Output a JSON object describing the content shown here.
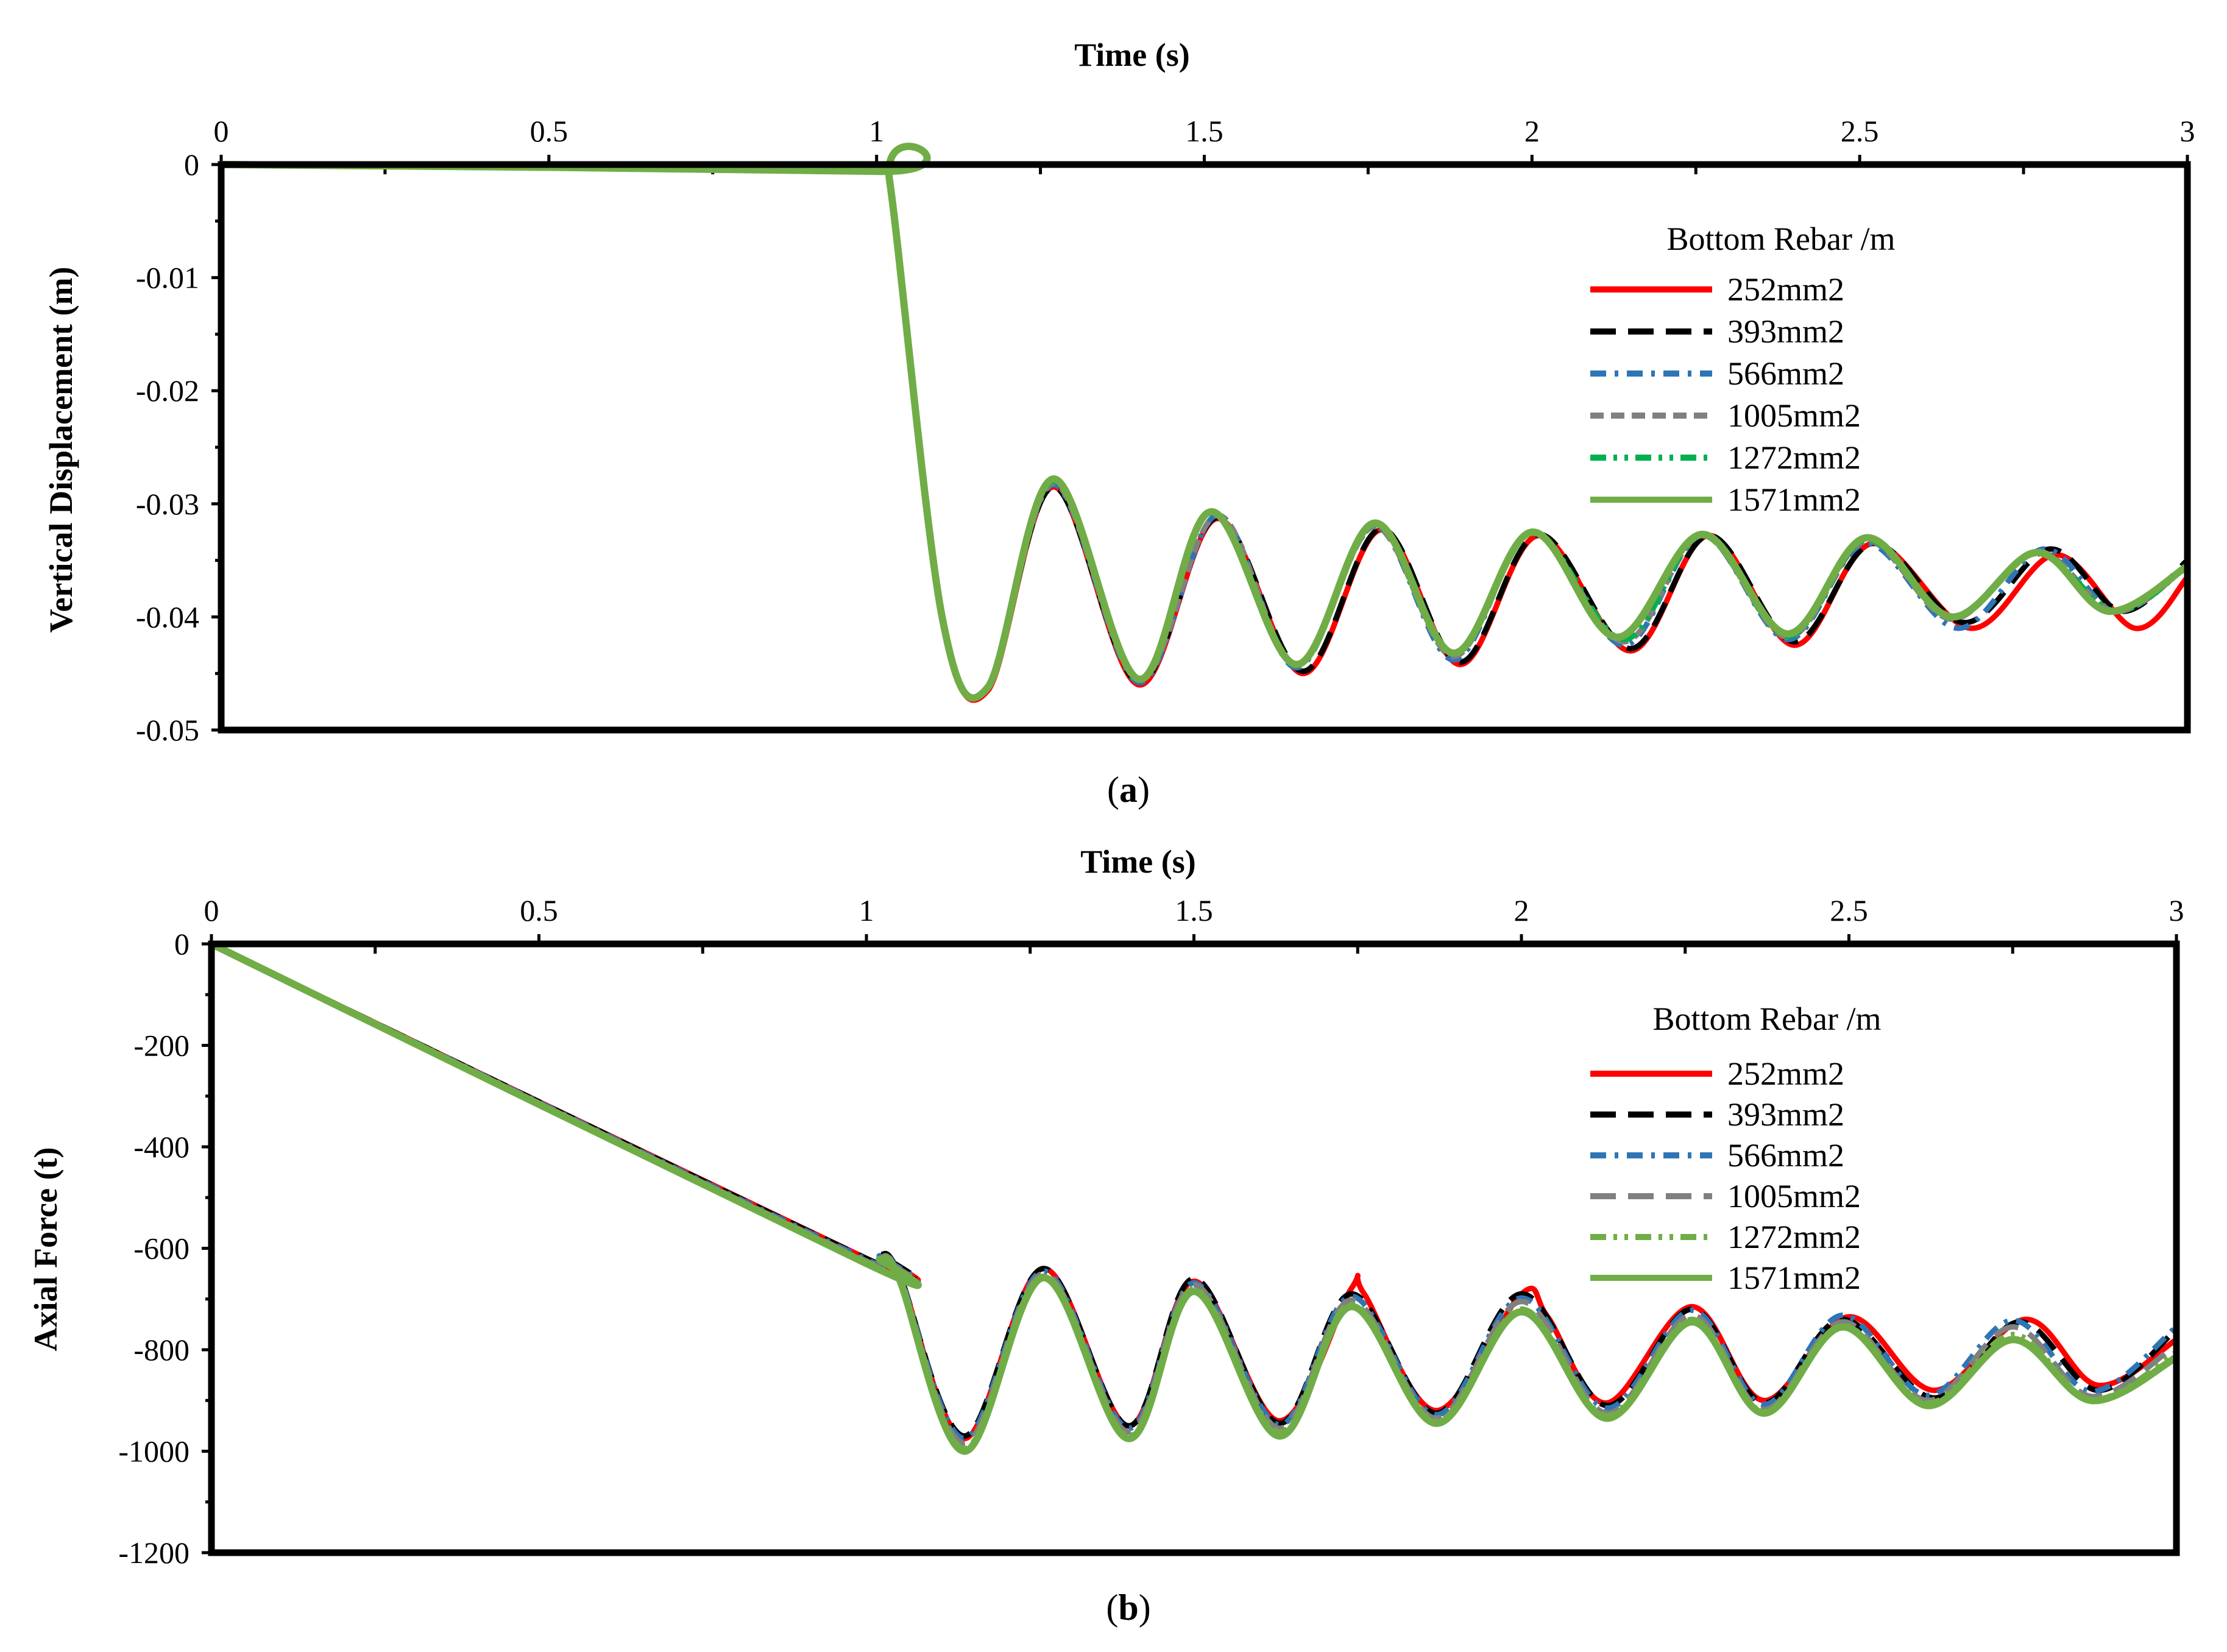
{
  "colors": {
    "252mm2": "#ff0000",
    "393mm2": "#000000",
    "566mm2": "#2e75b6",
    "1005mm2": "#808080",
    "1272mm2_a": "#00b050",
    "1272mm2_b": "#70ad47",
    "1571mm2": "#70ad47"
  },
  "chart_data": [
    {
      "type": "line",
      "panel_label_parts": [
        "(",
        "a",
        ")"
      ],
      "xlabel": "Time (s)",
      "ylabel": "Vertical Displacement (m)",
      "xlim": [
        0,
        3
      ],
      "ylim": [
        -0.05,
        0
      ],
      "x_ticks": [
        "0",
        "0.5",
        "1",
        "1.5",
        "2",
        "2.5",
        "3"
      ],
      "y_ticks": [
        "0",
        "-0.01",
        "-0.02",
        "-0.03",
        "-0.04",
        "-0.05"
      ],
      "x_axis_position": "top",
      "grid": false,
      "legend_title": "Bottom Rebar /m",
      "legend_position": "right",
      "series": [
        {
          "name": "252mm2",
          "color_key": "252mm2",
          "dash": "solid",
          "x": [
            0,
            1.0,
            1.02,
            1.1,
            1.17,
            1.27,
            1.4,
            1.52,
            1.65,
            1.77,
            1.89,
            2.01,
            2.15,
            2.27,
            2.4,
            2.52,
            2.67,
            2.8,
            2.92,
            3.0
          ],
          "y": [
            0,
            -0.0006,
            -0.0015,
            -0.04,
            -0.0465,
            -0.0285,
            -0.046,
            -0.0313,
            -0.045,
            -0.0323,
            -0.0442,
            -0.0328,
            -0.043,
            -0.0328,
            -0.0425,
            -0.0335,
            -0.041,
            -0.0345,
            -0.041,
            -0.0365
          ]
        },
        {
          "name": "393mm2",
          "color_key": "393mm2",
          "dash": "long-dash",
          "x": [
            0,
            1.0,
            1.02,
            1.1,
            1.17,
            1.27,
            1.4,
            1.52,
            1.65,
            1.77,
            1.89,
            2.01,
            2.15,
            2.27,
            2.4,
            2.52,
            2.66,
            2.79,
            2.9,
            3.0
          ],
          "y": [
            0,
            -0.0006,
            -0.0015,
            -0.04,
            -0.0463,
            -0.0285,
            -0.0458,
            -0.0312,
            -0.0448,
            -0.0322,
            -0.044,
            -0.0327,
            -0.0428,
            -0.0328,
            -0.0422,
            -0.0335,
            -0.0405,
            -0.034,
            -0.0395,
            -0.035
          ]
        },
        {
          "name": "566mm2",
          "color_key": "566mm2",
          "dash": "dash-dot",
          "x": [
            0,
            1.0,
            1.02,
            1.1,
            1.17,
            1.27,
            1.4,
            1.52,
            1.64,
            1.76,
            1.88,
            2.0,
            2.14,
            2.26,
            2.39,
            2.51,
            2.65,
            2.78,
            2.89,
            3.0
          ],
          "y": [
            0,
            -0.0006,
            -0.0015,
            -0.04,
            -0.0463,
            -0.0283,
            -0.0458,
            -0.031,
            -0.0445,
            -0.032,
            -0.0438,
            -0.0326,
            -0.0425,
            -0.0328,
            -0.042,
            -0.0335,
            -0.041,
            -0.034,
            -0.0395,
            -0.0355
          ]
        },
        {
          "name": "1005mm2",
          "color_key": "1005mm2",
          "dash": "short-dash",
          "x": [
            0,
            1.0,
            1.02,
            1.1,
            1.17,
            1.27,
            1.4,
            1.52,
            1.64,
            1.76,
            1.88,
            2.0,
            2.14,
            2.26,
            2.39,
            2.51,
            2.64,
            2.77,
            2.89,
            3.0
          ],
          "y": [
            0,
            -0.0006,
            -0.0015,
            -0.04,
            -0.0462,
            -0.0282,
            -0.0456,
            -0.031,
            -0.0443,
            -0.032,
            -0.0435,
            -0.0326,
            -0.0422,
            -0.0328,
            -0.0418,
            -0.0333,
            -0.0402,
            -0.0342,
            -0.0395,
            -0.0355
          ]
        },
        {
          "name": "1272mm2",
          "color_key": "1272mm2_a",
          "dash": "dash-dot-dot",
          "x": [
            0,
            1.0,
            1.02,
            1.1,
            1.17,
            1.27,
            1.4,
            1.51,
            1.64,
            1.76,
            1.88,
            2.0,
            2.14,
            2.26,
            2.39,
            2.51,
            2.64,
            2.77,
            2.89,
            3.0
          ],
          "y": [
            0,
            -0.0006,
            -0.0015,
            -0.04,
            -0.0462,
            -0.028,
            -0.0456,
            -0.0308,
            -0.0443,
            -0.0318,
            -0.0433,
            -0.0325,
            -0.042,
            -0.0328,
            -0.0417,
            -0.0332,
            -0.04,
            -0.0343,
            -0.0395,
            -0.0355
          ]
        },
        {
          "name": "1571mm2",
          "color_key": "1571mm2",
          "dash": "solid",
          "x": [
            0,
            1.0,
            1.02,
            1.1,
            1.17,
            1.27,
            1.4,
            1.51,
            1.64,
            1.76,
            1.88,
            2.0,
            2.13,
            2.26,
            2.39,
            2.51,
            2.64,
            2.77,
            2.88,
            3.0
          ],
          "y": [
            0,
            -0.0006,
            -0.0015,
            -0.04,
            -0.0462,
            -0.0278,
            -0.0455,
            -0.0307,
            -0.0442,
            -0.0317,
            -0.0432,
            -0.0325,
            -0.0418,
            -0.0327,
            -0.0415,
            -0.033,
            -0.04,
            -0.0343,
            -0.0395,
            -0.0355
          ]
        }
      ]
    },
    {
      "type": "line",
      "panel_label_parts": [
        "(",
        "b",
        ")"
      ],
      "xlabel": "Time (s)",
      "ylabel": "Axial Force (t)",
      "xlim": [
        0,
        3
      ],
      "ylim": [
        -1200,
        0
      ],
      "x_ticks": [
        "0",
        "0.5",
        "1",
        "1.5",
        "2",
        "2.5",
        "3"
      ],
      "y_ticks": [
        "0",
        "-200",
        "-400",
        "-600",
        "-800",
        "-1000",
        "-1200"
      ],
      "x_axis_position": "top",
      "grid": false,
      "legend_title": "Bottom Rebar /m",
      "legend_position": "right",
      "series": [
        {
          "name": "252mm2",
          "color_key": "252mm2",
          "dash": "solid",
          "x": [
            0,
            1.0,
            1.02,
            1.05,
            1.15,
            1.27,
            1.4,
            1.5,
            1.63,
            1.74,
            1.76,
            1.87,
            2.0,
            2.04,
            2.13,
            2.26,
            2.37,
            2.5,
            2.63,
            2.77,
            2.88,
            3.0
          ],
          "y": [
            0,
            -620,
            -615,
            -650,
            -975,
            -640,
            -950,
            -665,
            -940,
            -680,
            -690,
            -920,
            -690,
            -735,
            -905,
            -715,
            -900,
            -735,
            -880,
            -740,
            -870,
            -780
          ]
        },
        {
          "name": "393mm2",
          "color_key": "393mm2",
          "dash": "long-dash",
          "x": [
            0,
            1.0,
            1.02,
            1.05,
            1.15,
            1.27,
            1.4,
            1.5,
            1.63,
            1.74,
            1.87,
            2.0,
            2.13,
            2.26,
            2.37,
            2.49,
            2.63,
            2.76,
            2.88,
            3.0
          ],
          "y": [
            0,
            -620,
            -612,
            -650,
            -970,
            -640,
            -950,
            -660,
            -945,
            -690,
            -925,
            -690,
            -910,
            -720,
            -905,
            -740,
            -895,
            -745,
            -880,
            -760
          ]
        },
        {
          "name": "566mm2",
          "color_key": "566mm2",
          "dash": "dash-dot",
          "x": [
            0,
            1.0,
            1.02,
            1.05,
            1.15,
            1.27,
            1.4,
            1.5,
            1.63,
            1.74,
            1.87,
            2.0,
            2.13,
            2.26,
            2.37,
            2.49,
            2.62,
            2.75,
            2.87,
            3.0
          ],
          "y": [
            0,
            -622,
            -615,
            -652,
            -975,
            -645,
            -955,
            -668,
            -948,
            -695,
            -928,
            -698,
            -915,
            -722,
            -908,
            -732,
            -890,
            -742,
            -882,
            -755
          ]
        },
        {
          "name": "1005mm2",
          "color_key": "1005mm2",
          "dash": "long-dash",
          "x": [
            0,
            1.0,
            1.02,
            1.05,
            1.15,
            1.27,
            1.4,
            1.5,
            1.63,
            1.74,
            1.87,
            2.0,
            2.13,
            2.26,
            2.37,
            2.49,
            2.62,
            2.75,
            2.87,
            3.0
          ],
          "y": [
            0,
            -625,
            -617,
            -655,
            -985,
            -650,
            -962,
            -672,
            -955,
            -702,
            -935,
            -705,
            -925,
            -732,
            -918,
            -745,
            -900,
            -755,
            -892,
            -790
          ]
        },
        {
          "name": "1272mm2",
          "color_key": "1272mm2_b",
          "dash": "dash-dot-dot",
          "x": [
            0,
            1.0,
            1.02,
            1.05,
            1.15,
            1.27,
            1.4,
            1.5,
            1.63,
            1.74,
            1.87,
            2.0,
            2.13,
            2.26,
            2.37,
            2.49,
            2.62,
            2.75,
            2.87,
            3.0
          ],
          "y": [
            0,
            -627,
            -620,
            -657,
            -995,
            -655,
            -970,
            -680,
            -962,
            -710,
            -940,
            -720,
            -930,
            -740,
            -922,
            -752,
            -905,
            -770,
            -898,
            -805
          ]
        },
        {
          "name": "1571mm2",
          "color_key": "1571mm2",
          "dash": "solid",
          "x": [
            0,
            1.0,
            1.02,
            1.05,
            1.15,
            1.27,
            1.4,
            1.5,
            1.63,
            1.74,
            1.87,
            2.0,
            2.13,
            2.26,
            2.37,
            2.49,
            2.62,
            2.75,
            2.87,
            3.0
          ],
          "y": [
            0,
            -630,
            -622,
            -660,
            -1000,
            -658,
            -975,
            -685,
            -970,
            -715,
            -945,
            -725,
            -935,
            -745,
            -925,
            -755,
            -910,
            -780,
            -900,
            -815
          ]
        }
      ]
    }
  ]
}
